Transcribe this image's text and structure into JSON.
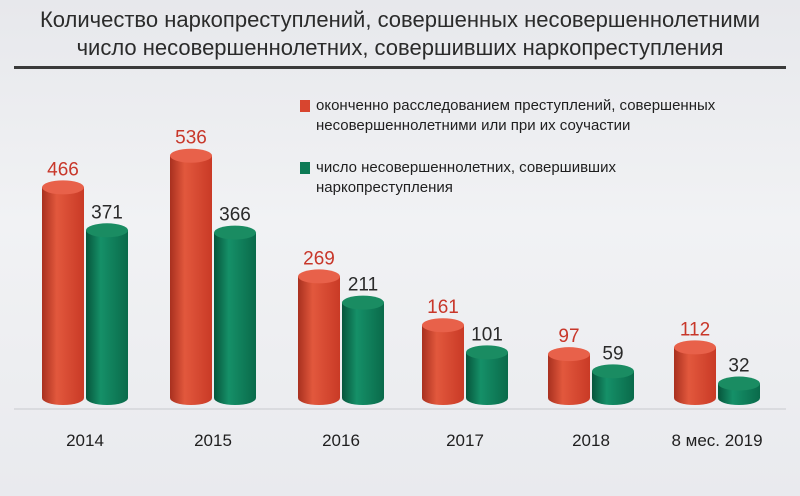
{
  "title": {
    "line1": "Количество наркопреступлений, совершенных несовершеннолетними",
    "line2": "число несовершеннолетних, совершивших наркопреступления"
  },
  "legend": {
    "item1": "оконченно расследованием преступлений, совершенных несовершеннолетними или при их соучастии",
    "item2": "число несовершеннолетних, совершивших наркопреступления"
  },
  "colors": {
    "red": "#d8452f",
    "green": "#0d7a55",
    "red_label": "#c8372a",
    "green_label": "#2a2a2a"
  },
  "chart_data": {
    "type": "bar",
    "categories": [
      "2014",
      "2015",
      "2016",
      "2017",
      "2018",
      "8 мес. 2019"
    ],
    "series": [
      {
        "name": "оконченно расследованием преступлений, совершенных несовершеннолетними или при их соучастии",
        "values": [
          466,
          536,
          269,
          161,
          97,
          112
        ]
      },
      {
        "name": "число несовершеннолетних, совершивших наркопреступления",
        "values": [
          371,
          366,
          211,
          101,
          59,
          32
        ]
      }
    ],
    "title": "Количество наркопреступлений, совершенных несовершеннолетними",
    "xlabel": "",
    "ylabel": "",
    "ylim": [
      0,
      550
    ],
    "grid": false,
    "legend_position": "top-right"
  }
}
